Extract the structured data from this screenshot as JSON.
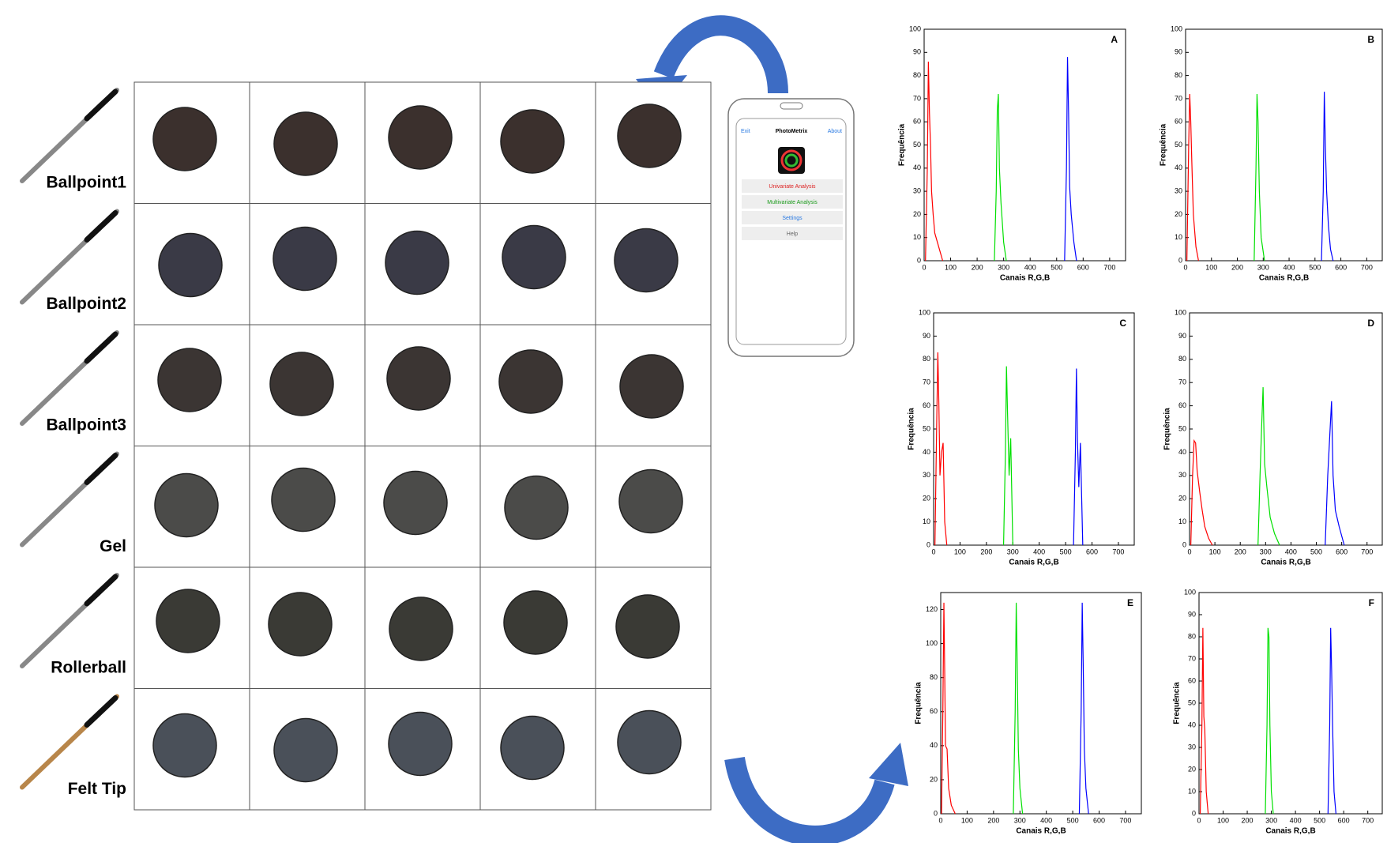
{
  "pens": [
    "Ballpoint1",
    "Ballpoint2",
    "Ballpoint3",
    "Gel",
    "Rollerball",
    "Felt Tip"
  ],
  "phone": {
    "exit": "Exit",
    "title": "PhotoMetrix",
    "about": "About",
    "buttons": [
      "Univariate Analysis",
      "Multivariate Analysis",
      "Settings",
      "Help"
    ]
  },
  "chart_data": [
    {
      "type": "line",
      "label": "A",
      "xlabel": "Canais R,G,B",
      "ylabel": "Frequência",
      "xlim": [
        0,
        760
      ],
      "ylim": [
        0,
        100
      ],
      "xticks": [
        0,
        100,
        200,
        300,
        400,
        500,
        600,
        700
      ],
      "yticks": [
        0,
        10,
        20,
        30,
        40,
        50,
        60,
        70,
        80,
        90,
        100
      ],
      "series": [
        {
          "color": "#ff0000",
          "x": [
            5,
            12,
            16,
            20,
            24,
            28,
            34,
            40,
            50,
            60,
            70
          ],
          "values": [
            0,
            40,
            86,
            64,
            50,
            30,
            20,
            12,
            8,
            4,
            0
          ]
        },
        {
          "color": "#00e000",
          "x": [
            265,
            272,
            276,
            280,
            284,
            290,
            300,
            310
          ],
          "values": [
            0,
            30,
            65,
            72,
            40,
            25,
            8,
            0
          ]
        },
        {
          "color": "#0000ff",
          "x": [
            530,
            537,
            541,
            545,
            549,
            555,
            565,
            575
          ],
          "values": [
            0,
            40,
            88,
            64,
            32,
            20,
            8,
            0
          ]
        }
      ]
    },
    {
      "type": "line",
      "label": "B",
      "xlabel": "Canais R,G,B",
      "ylabel": "Frequência",
      "xlim": [
        0,
        760
      ],
      "ylim": [
        0,
        100
      ],
      "xticks": [
        0,
        100,
        200,
        300,
        400,
        500,
        600,
        700
      ],
      "yticks": [
        0,
        10,
        20,
        30,
        40,
        50,
        60,
        70,
        80,
        90,
        100
      ],
      "series": [
        {
          "color": "#ff0000",
          "x": [
            5,
            12,
            16,
            20,
            24,
            30,
            40,
            50
          ],
          "values": [
            0,
            50,
            72,
            60,
            43,
            20,
            6,
            0
          ]
        },
        {
          "color": "#00e000",
          "x": [
            265,
            272,
            276,
            280,
            285,
            292,
            305
          ],
          "values": [
            0,
            40,
            72,
            60,
            30,
            10,
            0
          ]
        },
        {
          "color": "#0000ff",
          "x": [
            525,
            532,
            536,
            540,
            545,
            552,
            560,
            570
          ],
          "values": [
            0,
            30,
            73,
            50,
            30,
            15,
            5,
            0
          ]
        }
      ]
    },
    {
      "type": "line",
      "label": "C",
      "xlabel": "Canais R,G,B",
      "ylabel": "Frequência",
      "xlim": [
        0,
        760
      ],
      "ylim": [
        0,
        100
      ],
      "xticks": [
        0,
        100,
        200,
        300,
        400,
        500,
        600,
        700
      ],
      "yticks": [
        0,
        10,
        20,
        30,
        40,
        50,
        60,
        70,
        80,
        90,
        100
      ],
      "series": [
        {
          "color": "#ff0000",
          "x": [
            5,
            12,
            16,
            20,
            24,
            30,
            36,
            42,
            50
          ],
          "values": [
            0,
            55,
            83,
            60,
            30,
            40,
            44,
            10,
            0
          ]
        },
        {
          "color": "#00e000",
          "x": [
            265,
            272,
            276,
            280,
            286,
            292,
            300
          ],
          "values": [
            0,
            40,
            77,
            57,
            30,
            46,
            0
          ]
        },
        {
          "color": "#0000ff",
          "x": [
            530,
            537,
            541,
            545,
            550,
            556,
            565
          ],
          "values": [
            0,
            40,
            76,
            45,
            25,
            44,
            0
          ]
        }
      ]
    },
    {
      "type": "line",
      "label": "D",
      "xlabel": "Canais R,G,B",
      "ylabel": "Frequência",
      "xlim": [
        0,
        760
      ],
      "ylim": [
        0,
        100
      ],
      "xticks": [
        0,
        100,
        200,
        300,
        400,
        500,
        600,
        700
      ],
      "yticks": [
        0,
        10,
        20,
        30,
        40,
        50,
        60,
        70,
        80,
        90,
        100
      ],
      "series": [
        {
          "color": "#ff0000",
          "x": [
            5,
            12,
            18,
            24,
            30,
            40,
            50,
            60,
            75,
            90
          ],
          "values": [
            0,
            30,
            45,
            44,
            32,
            23,
            15,
            8,
            3,
            0
          ]
        },
        {
          "color": "#00e000",
          "x": [
            270,
            278,
            284,
            290,
            296,
            305,
            318,
            335,
            355
          ],
          "values": [
            0,
            30,
            50,
            68,
            35,
            25,
            12,
            5,
            0
          ]
        },
        {
          "color": "#0000ff",
          "x": [
            535,
            545,
            552,
            560,
            566,
            575,
            590,
            610
          ],
          "values": [
            0,
            30,
            45,
            62,
            30,
            15,
            8,
            0
          ]
        }
      ]
    },
    {
      "type": "line",
      "label": "E",
      "xlabel": "Canais R,G,B",
      "ylabel": "Frequência",
      "xlim": [
        0,
        760
      ],
      "ylim": [
        0,
        130
      ],
      "xticks": [
        0,
        100,
        200,
        300,
        400,
        500,
        600,
        700
      ],
      "yticks": [
        0,
        20,
        40,
        60,
        80,
        100,
        120
      ],
      "series": [
        {
          "color": "#ff0000",
          "x": [
            3,
            8,
            12,
            15,
            18,
            24,
            30,
            40,
            55
          ],
          "values": [
            0,
            60,
            124,
            84,
            40,
            38,
            15,
            5,
            0
          ]
        },
        {
          "color": "#00e000",
          "x": [
            275,
            282,
            286,
            290,
            294,
            300,
            310
          ],
          "values": [
            0,
            60,
            124,
            85,
            38,
            15,
            0
          ]
        },
        {
          "color": "#0000ff",
          "x": [
            525,
            532,
            536,
            540,
            544,
            550,
            560
          ],
          "values": [
            0,
            60,
            124,
            85,
            38,
            15,
            0
          ]
        }
      ]
    },
    {
      "type": "line",
      "label": "F",
      "xlabel": "Canais R,G,B",
      "ylabel": "Frequência",
      "xlim": [
        0,
        760
      ],
      "ylim": [
        0,
        100
      ],
      "xticks": [
        0,
        100,
        200,
        300,
        400,
        500,
        600,
        700
      ],
      "yticks": [
        0,
        10,
        20,
        30,
        40,
        50,
        60,
        70,
        80,
        90,
        100
      ],
      "series": [
        {
          "color": "#ff0000",
          "x": [
            5,
            12,
            16,
            20,
            24,
            30,
            38
          ],
          "values": [
            0,
            40,
            84,
            44,
            38,
            10,
            0
          ]
        },
        {
          "color": "#00e000",
          "x": [
            275,
            282,
            286,
            290,
            294,
            300,
            308
          ],
          "values": [
            0,
            40,
            84,
            80,
            40,
            10,
            0
          ]
        },
        {
          "color": "#0000ff",
          "x": [
            535,
            542,
            546,
            550,
            554,
            560,
            568
          ],
          "values": [
            0,
            40,
            84,
            65,
            40,
            10,
            0
          ]
        }
      ]
    }
  ]
}
